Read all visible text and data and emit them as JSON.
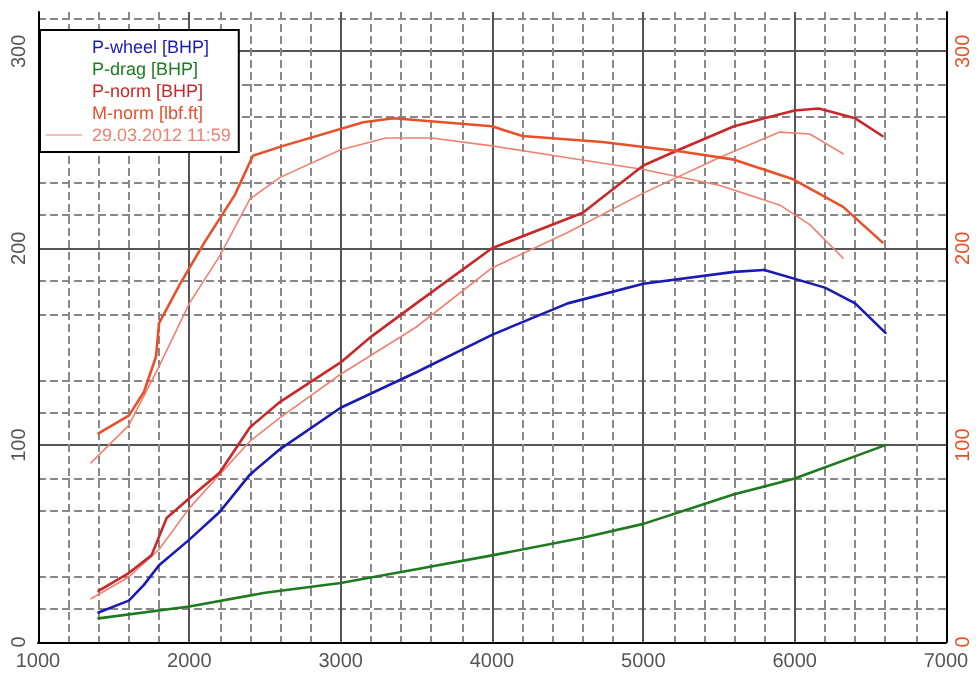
{
  "chart_data": {
    "type": "line",
    "xlim": [
      1000,
      7000
    ],
    "xticks": [
      1000,
      2000,
      3000,
      4000,
      5000,
      6000,
      7000
    ],
    "ylim": [
      0,
      320
    ],
    "yticks": [
      0,
      100,
      200,
      300
    ],
    "y2lim": [
      0,
      320
    ],
    "y2ticks": [
      0,
      100,
      200,
      300
    ],
    "grid": true,
    "legend": "top left",
    "marker": "none",
    "line_style": "solid",
    "series": [
      {
        "name": "P-wheel [BHP]",
        "color": "#1a1ab4",
        "x": [
          1400,
          1600,
          1700,
          1800,
          2000,
          2200,
          2400,
          2600,
          3000,
          3500,
          4000,
          4500,
          5000,
          5600,
          5800,
          6200,
          6400,
          6600
        ],
        "values": [
          15,
          21,
          29,
          39,
          52,
          66,
          85,
          98,
          119,
          137,
          156,
          172,
          182,
          188,
          189,
          180,
          172,
          157
        ]
      },
      {
        "name": "P-drag [BHP]",
        "color": "#1e7a1e",
        "x": [
          1400,
          2000,
          2500,
          3000,
          3500,
          4000,
          4600,
          5000,
          5600,
          6000,
          6600
        ],
        "values": [
          12,
          18,
          25,
          30,
          37,
          44,
          53,
          60,
          75,
          83,
          100
        ]
      },
      {
        "name": "P-norm [BHP]",
        "color": "#c8282a",
        "x": [
          1400,
          1600,
          1750,
          1850,
          2000,
          2200,
          2400,
          2600,
          3000,
          3200,
          3500,
          4000,
          4600,
          5000,
          5235,
          5600,
          6000,
          6160,
          6400,
          6580
        ],
        "values": [
          26,
          35,
          44,
          63,
          73,
          86,
          109,
          122,
          142,
          155,
          172,
          200,
          218,
          242,
          250,
          262,
          270,
          271,
          266,
          257
        ]
      },
      {
        "name": "M-norm [lbf.ft]",
        "color": "#e8502a",
        "axis": "y2",
        "x": [
          1400,
          1600,
          1700,
          1780,
          1800,
          1940,
          2100,
          2300,
          2420,
          2620,
          3150,
          3350,
          4000,
          4200,
          4730,
          5260,
          5600,
          5990,
          6320,
          6580
        ],
        "values": [
          106,
          115,
          127,
          145,
          162,
          182,
          203,
          227,
          247,
          252,
          264,
          266,
          262,
          257,
          254,
          249,
          245,
          235,
          221,
          203
        ]
      },
      {
        "name": "29.03.2012 11:59",
        "color": "#f08070",
        "x": [
          1350,
          1600,
          1800,
          2000,
          2400,
          2600,
          3000,
          3500,
          4000,
          4500,
          5000,
          5500,
          5900,
          6100,
          6320
        ],
        "values": [
          22,
          33,
          47,
          68,
          102,
          114,
          136,
          160,
          190,
          208,
          228,
          246,
          259,
          258,
          248
        ]
      },
      {
        "color": "#f08070",
        "axis": "y2",
        "x": [
          1350,
          1600,
          1800,
          2000,
          2200,
          2400,
          2600,
          3000,
          3300,
          3600,
          4000,
          4500,
          5000,
          5500,
          5900,
          6100,
          6320
        ],
        "values": [
          91,
          110,
          140,
          172,
          196,
          225,
          236,
          250,
          256,
          256,
          252,
          246,
          240,
          232,
          222,
          212,
          195
        ]
      }
    ]
  }
}
